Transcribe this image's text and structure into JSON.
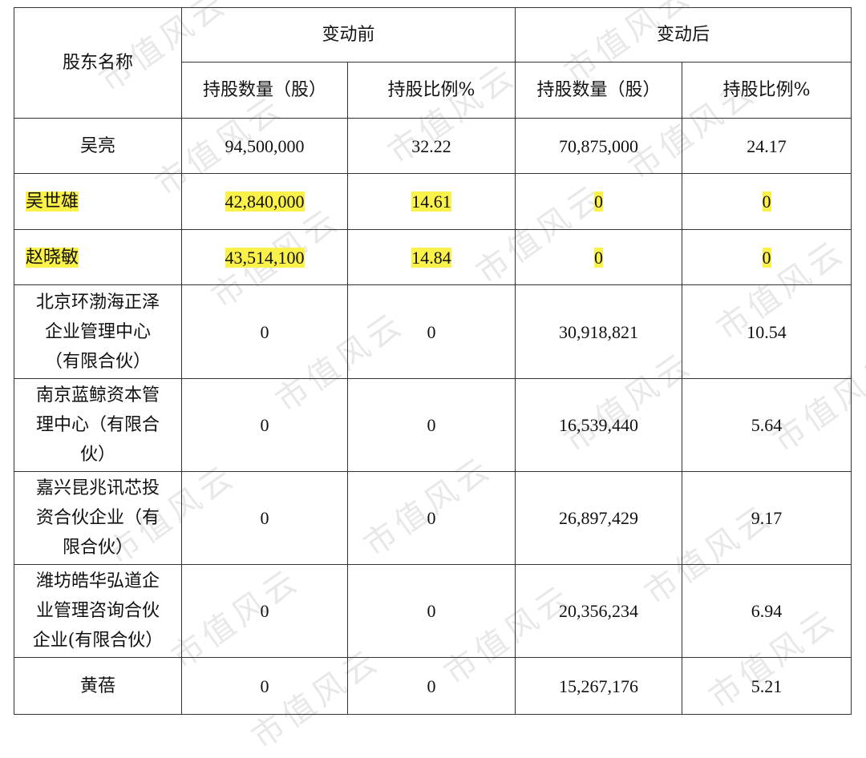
{
  "table": {
    "header": {
      "name": "股东名称",
      "before": "变动前",
      "after": "变动后",
      "shares": "持股数量（股）",
      "ratio": "持股比例%"
    },
    "rows": [
      {
        "name": "吴亮",
        "before_shares": "94,500,000",
        "before_ratio": "32.22",
        "after_shares": "70,875,000",
        "after_ratio": "24.17",
        "highlight": false
      },
      {
        "name": "吴世雄",
        "before_shares": "42,840,000",
        "before_ratio": "14.61",
        "after_shares": "0",
        "after_ratio": "0",
        "highlight": true
      },
      {
        "name": "赵晓敏",
        "before_shares": "43,514,100",
        "before_ratio": "14.84",
        "after_shares": "0",
        "after_ratio": "0",
        "highlight": true
      },
      {
        "name_lines": [
          "北京环渤海正泽",
          "企业管理中心",
          "（有限合伙）"
        ],
        "before_shares": "0",
        "before_ratio": "0",
        "after_shares": "30,918,821",
        "after_ratio": "10.54",
        "highlight": false
      },
      {
        "name_lines": [
          "南京蓝鲸资本管",
          "理中心（有限合",
          "伙）"
        ],
        "before_shares": "0",
        "before_ratio": "0",
        "after_shares": "16,539,440",
        "after_ratio": "5.64",
        "highlight": false
      },
      {
        "name_lines": [
          "嘉兴昆兆讯芯投",
          "资合伙企业（有",
          "限合伙）"
        ],
        "before_shares": "0",
        "before_ratio": "0",
        "after_shares": "26,897,429",
        "after_ratio": "9.17",
        "highlight": false
      },
      {
        "name_lines": [
          "潍坊皓华弘道企",
          "业管理咨询合伙",
          "企业(有限合伙）"
        ],
        "before_shares": "0",
        "before_ratio": "0",
        "after_shares": "20,356,234",
        "after_ratio": "6.94",
        "highlight": false
      },
      {
        "name": "黄蓓",
        "before_shares": "0",
        "before_ratio": "0",
        "after_shares": "15,267,176",
        "after_ratio": "5.21",
        "highlight": false
      }
    ],
    "highlight_color": "#fbf249"
  },
  "watermark": "市值风云"
}
